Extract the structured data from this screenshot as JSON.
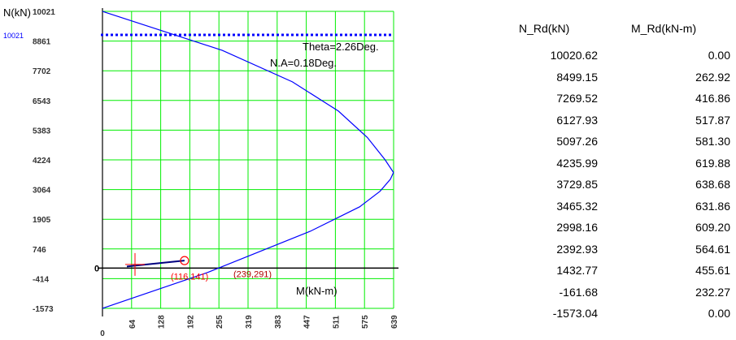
{
  "chart_data": {
    "type": "line",
    "title": "",
    "xlabel": "M(kN-m)",
    "ylabel": "N(kN)",
    "xlim": [
      0,
      639
    ],
    "ylim": [
      -1573,
      10021
    ],
    "x_ticks": [
      "0",
      "64",
      "128",
      "192",
      "255",
      "319",
      "383",
      "447",
      "511",
      "575",
      "639"
    ],
    "y_ticks": [
      "10021",
      "8861",
      "7702",
      "6543",
      "5383",
      "4224",
      "3064",
      "1905",
      "746",
      "-414",
      "-1573"
    ],
    "grid": true,
    "series": [
      {
        "x": [
          0.0,
          262.92,
          416.86,
          517.87,
          581.3,
          619.88,
          638.68,
          631.86,
          609.2,
          564.61,
          455.61,
          232.27,
          0.0
        ],
        "y": [
          10020.62,
          8499.15,
          7269.52,
          6127.93,
          5097.26,
          4235.99,
          3729.85,
          3465.32,
          2998.16,
          2392.93,
          1432.77,
          -161.68,
          -1573.04
        ],
        "color": "#0000ff"
      }
    ],
    "reference_line": {
      "label": "10021",
      "value": 10021,
      "color": "#0000ff",
      "style": "dotted"
    },
    "load_point": {
      "label": "(116,141)",
      "x": 116,
      "y": 141,
      "color": "#ff0000"
    },
    "capacity_point": {
      "label": "(239,291)",
      "x": 239,
      "y": 291,
      "color": "#ff0000"
    },
    "annotations": {
      "theta": "Theta=2.26Deg.",
      "na": "N.A=0.18Deg.",
      "zero_label": "0"
    }
  },
  "table": {
    "headers": [
      "N_Rd(kN)",
      "M_Rd(kN-m)"
    ],
    "rows": [
      [
        "10020.62",
        "0.00"
      ],
      [
        "8499.15",
        "262.92"
      ],
      [
        "7269.52",
        "416.86"
      ],
      [
        "6127.93",
        "517.87"
      ],
      [
        "5097.26",
        "581.30"
      ],
      [
        "4235.99",
        "619.88"
      ],
      [
        "3729.85",
        "638.68"
      ],
      [
        "3465.32",
        "631.86"
      ],
      [
        "2998.16",
        "609.20"
      ],
      [
        "2392.93",
        "564.61"
      ],
      [
        "1432.77",
        "455.61"
      ],
      [
        "-161.68",
        "232.27"
      ],
      [
        "-1573.04",
        "0.00"
      ]
    ]
  },
  "colors": {
    "grid": "#00ee00",
    "axis": "#000000",
    "curve": "#0000ff",
    "load": "#ff0000"
  }
}
